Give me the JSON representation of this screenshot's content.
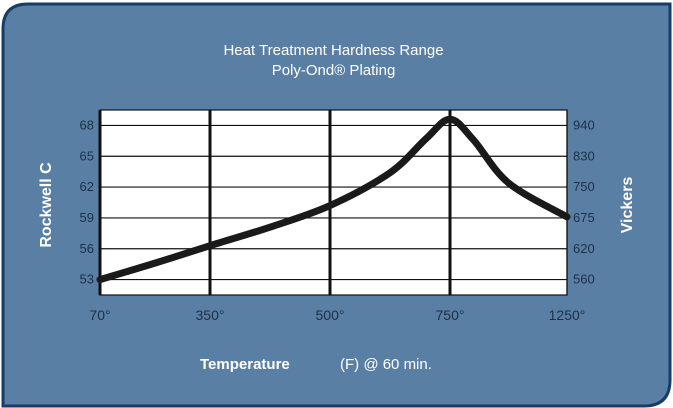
{
  "chart_data": {
    "type": "line",
    "title": "Heat Treatment Hardness Range",
    "subtitle": "Poly-Ond® Plating",
    "xlabel": "Temperature",
    "xlabel_suffix": "(F) @ 60 min.",
    "ylabel_left": "Rockwell C",
    "ylabel_right": "Vickers",
    "x_categories": [
      "70°",
      "350°",
      "500°",
      "750°",
      "1250°"
    ],
    "y_left_ticks": [
      53,
      56,
      59,
      62,
      65,
      68
    ],
    "y_right_ticks": [
      "560",
      "620",
      "675",
      "750",
      "830",
      "940"
    ],
    "series": [
      {
        "x": [
          "70°",
          "350°",
          "500°",
          "750°",
          "1250°"
        ],
        "points": [
          {
            "x": 0,
            "y": 53.0
          },
          {
            "x": 0.5,
            "y": 54.6
          },
          {
            "x": 1.0,
            "y": 56.3
          },
          {
            "x": 1.5,
            "y": 58.1
          },
          {
            "x": 2.0,
            "y": 60.2
          },
          {
            "x": 2.5,
            "y": 63.4
          },
          {
            "x": 2.8,
            "y": 66.7
          },
          {
            "x": 3.0,
            "y": 68.6
          },
          {
            "x": 3.2,
            "y": 66.6
          },
          {
            "x": 3.5,
            "y": 62.4
          },
          {
            "x": 4.0,
            "y": 59.1
          }
        ]
      }
    ],
    "ylim": [
      51.5,
      69.5
    ],
    "grid": true,
    "colors": {
      "background": "#5a7fa4",
      "border": "#173d66",
      "plot_bg": "#ffffff",
      "line": "#1a1a1a",
      "text": "#ffffff",
      "tick_text": "#1e2f48"
    }
  }
}
